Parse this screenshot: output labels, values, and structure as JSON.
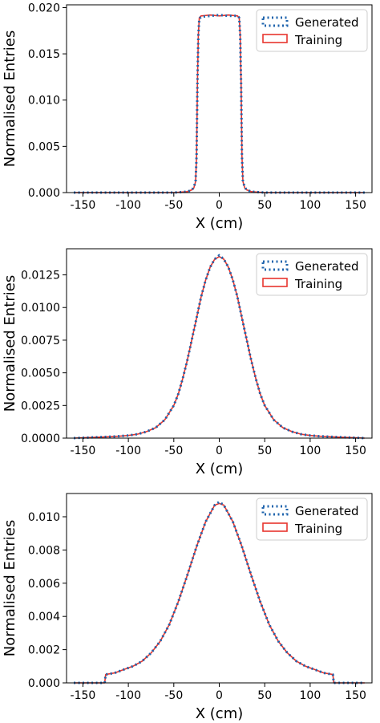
{
  "colors": {
    "generated": "#1f64ad",
    "training": "#e8352e"
  },
  "legend": {
    "generated": "Generated",
    "training": "Training",
    "placement": "top-right"
  },
  "chart_data": [
    {
      "type": "histogram",
      "xlabel": "X (cm)",
      "ylabel": "Normalised Entries",
      "xlim": [
        -168,
        168
      ],
      "ylim": [
        0.0,
        0.0203
      ],
      "xticks": [
        -150,
        -100,
        -50,
        0,
        50,
        100,
        150
      ],
      "yticks": [
        0.0,
        0.005,
        0.01,
        0.015,
        0.02
      ],
      "ytick_labels": [
        "0.000",
        "0.005",
        "0.010",
        "0.015",
        "0.020"
      ],
      "series": [
        {
          "name": "Generated",
          "style": "dotted",
          "points": [
            [
              -160,
              0.0
            ],
            [
              -50,
              0.0
            ],
            [
              -35,
              0.0001
            ],
            [
              -30,
              0.0003
            ],
            [
              -28,
              0.0006
            ],
            [
              -26,
              0.0012
            ],
            [
              -25,
              0.004
            ],
            [
              -24,
              0.012
            ],
            [
              -23,
              0.017
            ],
            [
              -22,
              0.0188
            ],
            [
              -20,
              0.019
            ],
            [
              -10,
              0.0191
            ],
            [
              0,
              0.0192
            ],
            [
              10,
              0.0191
            ],
            [
              20,
              0.0191
            ],
            [
              22,
              0.0189
            ],
            [
              23,
              0.017
            ],
            [
              24,
              0.012
            ],
            [
              25,
              0.004
            ],
            [
              26,
              0.0012
            ],
            [
              28,
              0.0006
            ],
            [
              30,
              0.0003
            ],
            [
              35,
              0.0001
            ],
            [
              50,
              0.0
            ],
            [
              160,
              0.0
            ]
          ]
        },
        {
          "name": "Training",
          "style": "solid",
          "points": [
            [
              -160,
              0.0
            ],
            [
              -50,
              0.0
            ],
            [
              -35,
              0.0001
            ],
            [
              -30,
              0.0003
            ],
            [
              -28,
              0.0005
            ],
            [
              -26,
              0.0012
            ],
            [
              -25,
              0.004
            ],
            [
              -24,
              0.012
            ],
            [
              -23,
              0.017
            ],
            [
              -22,
              0.0189
            ],
            [
              -20,
              0.0191
            ],
            [
              -10,
              0.0192
            ],
            [
              0,
              0.0191
            ],
            [
              10,
              0.0192
            ],
            [
              20,
              0.0191
            ],
            [
              22,
              0.0189
            ],
            [
              23,
              0.017
            ],
            [
              24,
              0.012
            ],
            [
              25,
              0.004
            ],
            [
              26,
              0.0012
            ],
            [
              28,
              0.0005
            ],
            [
              30,
              0.0003
            ],
            [
              35,
              0.0001
            ],
            [
              50,
              0.0
            ],
            [
              160,
              0.0
            ]
          ]
        }
      ]
    },
    {
      "type": "histogram",
      "xlabel": "X (cm)",
      "ylabel": "Normalised Entries",
      "xlim": [
        -168,
        168
      ],
      "ylim": [
        0.0,
        0.0145
      ],
      "xticks": [
        -150,
        -100,
        -50,
        0,
        50,
        100,
        150
      ],
      "yticks": [
        0.0,
        0.0025,
        0.005,
        0.0075,
        0.01,
        0.0125
      ],
      "ytick_labels": [
        "0.0000",
        "0.0025",
        "0.0050",
        "0.0075",
        "0.0100",
        "0.0125"
      ],
      "series": [
        {
          "name": "Generated",
          "style": "dotted",
          "points": [
            [
              -160,
              0.0
            ],
            [
              -150,
              3e-05
            ],
            [
              -130,
              8e-05
            ],
            [
              -110,
              0.00015
            ],
            [
              -100,
              0.0002
            ],
            [
              -90,
              0.0003
            ],
            [
              -80,
              0.0005
            ],
            [
              -70,
              0.0008
            ],
            [
              -60,
              0.0014
            ],
            [
              -50,
              0.0025
            ],
            [
              -45,
              0.0034
            ],
            [
              -40,
              0.0046
            ],
            [
              -35,
              0.006
            ],
            [
              -30,
              0.0076
            ],
            [
              -25,
              0.0092
            ],
            [
              -20,
              0.0108
            ],
            [
              -15,
              0.0121
            ],
            [
              -10,
              0.0131
            ],
            [
              -5,
              0.0137
            ],
            [
              0,
              0.014
            ],
            [
              5,
              0.0137
            ],
            [
              10,
              0.0131
            ],
            [
              15,
              0.0121
            ],
            [
              20,
              0.0108
            ],
            [
              25,
              0.0092
            ],
            [
              30,
              0.0076
            ],
            [
              35,
              0.006
            ],
            [
              40,
              0.0046
            ],
            [
              45,
              0.0034
            ],
            [
              50,
              0.0025
            ],
            [
              60,
              0.0014
            ],
            [
              70,
              0.0008
            ],
            [
              80,
              0.0005
            ],
            [
              90,
              0.0003
            ],
            [
              100,
              0.0002
            ],
            [
              110,
              0.00015
            ],
            [
              130,
              8e-05
            ],
            [
              150,
              3e-05
            ],
            [
              160,
              0.0
            ]
          ]
        },
        {
          "name": "Training",
          "style": "solid",
          "points": [
            [
              -160,
              0.0
            ],
            [
              -150,
              3e-05
            ],
            [
              -130,
              8e-05
            ],
            [
              -110,
              0.00015
            ],
            [
              -100,
              0.0002
            ],
            [
              -90,
              0.0003
            ],
            [
              -80,
              0.0005
            ],
            [
              -70,
              0.0008
            ],
            [
              -60,
              0.0014
            ],
            [
              -50,
              0.0025
            ],
            [
              -45,
              0.0034
            ],
            [
              -40,
              0.0046
            ],
            [
              -35,
              0.006
            ],
            [
              -30,
              0.0076
            ],
            [
              -25,
              0.0092
            ],
            [
              -20,
              0.0108
            ],
            [
              -15,
              0.0121
            ],
            [
              -10,
              0.0131
            ],
            [
              -5,
              0.0137
            ],
            [
              0,
              0.0139
            ],
            [
              5,
              0.0137
            ],
            [
              10,
              0.0131
            ],
            [
              15,
              0.0121
            ],
            [
              20,
              0.0108
            ],
            [
              25,
              0.0092
            ],
            [
              30,
              0.0076
            ],
            [
              35,
              0.006
            ],
            [
              40,
              0.0046
            ],
            [
              45,
              0.0034
            ],
            [
              50,
              0.0025
            ],
            [
              60,
              0.0014
            ],
            [
              70,
              0.0008
            ],
            [
              80,
              0.0005
            ],
            [
              90,
              0.0003
            ],
            [
              100,
              0.0002
            ],
            [
              110,
              0.00015
            ],
            [
              130,
              8e-05
            ],
            [
              150,
              3e-05
            ],
            [
              160,
              0.0
            ]
          ]
        }
      ]
    },
    {
      "type": "histogram",
      "xlabel": "X (cm)",
      "ylabel": "Normalised Entries",
      "xlim": [
        -168,
        168
      ],
      "ylim": [
        0.0,
        0.0114
      ],
      "xticks": [
        -150,
        -100,
        -50,
        0,
        50,
        100,
        150
      ],
      "yticks": [
        0.0,
        0.002,
        0.004,
        0.006,
        0.008,
        0.01
      ],
      "ytick_labels": [
        "0.000",
        "0.002",
        "0.004",
        "0.006",
        "0.008",
        "0.010"
      ],
      "series": [
        {
          "name": "Generated",
          "style": "dotted",
          "points": [
            [
              -160,
              0.0
            ],
            [
              -130,
              0.0
            ],
            [
              -126,
              0.0
            ],
            [
              -125,
              0.0005
            ],
            [
              -115,
              0.0006
            ],
            [
              -105,
              0.0008
            ],
            [
              -95,
              0.001
            ],
            [
              -85,
              0.0013
            ],
            [
              -75,
              0.0018
            ],
            [
              -65,
              0.0025
            ],
            [
              -55,
              0.0035
            ],
            [
              -45,
              0.0049
            ],
            [
              -35,
              0.0065
            ],
            [
              -25,
              0.0082
            ],
            [
              -15,
              0.0097
            ],
            [
              -5,
              0.0107
            ],
            [
              0,
              0.0109
            ],
            [
              5,
              0.0107
            ],
            [
              15,
              0.0097
            ],
            [
              25,
              0.0082
            ],
            [
              35,
              0.0065
            ],
            [
              45,
              0.0049
            ],
            [
              55,
              0.0035
            ],
            [
              65,
              0.0025
            ],
            [
              75,
              0.0018
            ],
            [
              85,
              0.0013
            ],
            [
              95,
              0.001
            ],
            [
              105,
              0.0008
            ],
            [
              115,
              0.0006
            ],
            [
              125,
              0.0005
            ],
            [
              126,
              0.0
            ],
            [
              130,
              0.0
            ],
            [
              160,
              0.0
            ]
          ]
        },
        {
          "name": "Training",
          "style": "solid",
          "points": [
            [
              -160,
              0.0
            ],
            [
              -130,
              0.0
            ],
            [
              -126,
              0.0
            ],
            [
              -125,
              0.0005
            ],
            [
              -115,
              0.0006
            ],
            [
              -105,
              0.0008
            ],
            [
              -95,
              0.001
            ],
            [
              -85,
              0.0013
            ],
            [
              -75,
              0.0018
            ],
            [
              -65,
              0.0025
            ],
            [
              -55,
              0.0035
            ],
            [
              -45,
              0.0049
            ],
            [
              -35,
              0.0065
            ],
            [
              -25,
              0.0082
            ],
            [
              -15,
              0.0097
            ],
            [
              -5,
              0.0107
            ],
            [
              0,
              0.0108
            ],
            [
              5,
              0.0107
            ],
            [
              15,
              0.0097
            ],
            [
              25,
              0.0082
            ],
            [
              35,
              0.0065
            ],
            [
              45,
              0.0049
            ],
            [
              55,
              0.0035
            ],
            [
              65,
              0.0025
            ],
            [
              75,
              0.0018
            ],
            [
              85,
              0.0013
            ],
            [
              95,
              0.001
            ],
            [
              105,
              0.0008
            ],
            [
              115,
              0.0006
            ],
            [
              125,
              0.0005
            ],
            [
              126,
              0.0
            ],
            [
              130,
              0.0
            ],
            [
              160,
              0.0
            ]
          ]
        }
      ]
    }
  ]
}
